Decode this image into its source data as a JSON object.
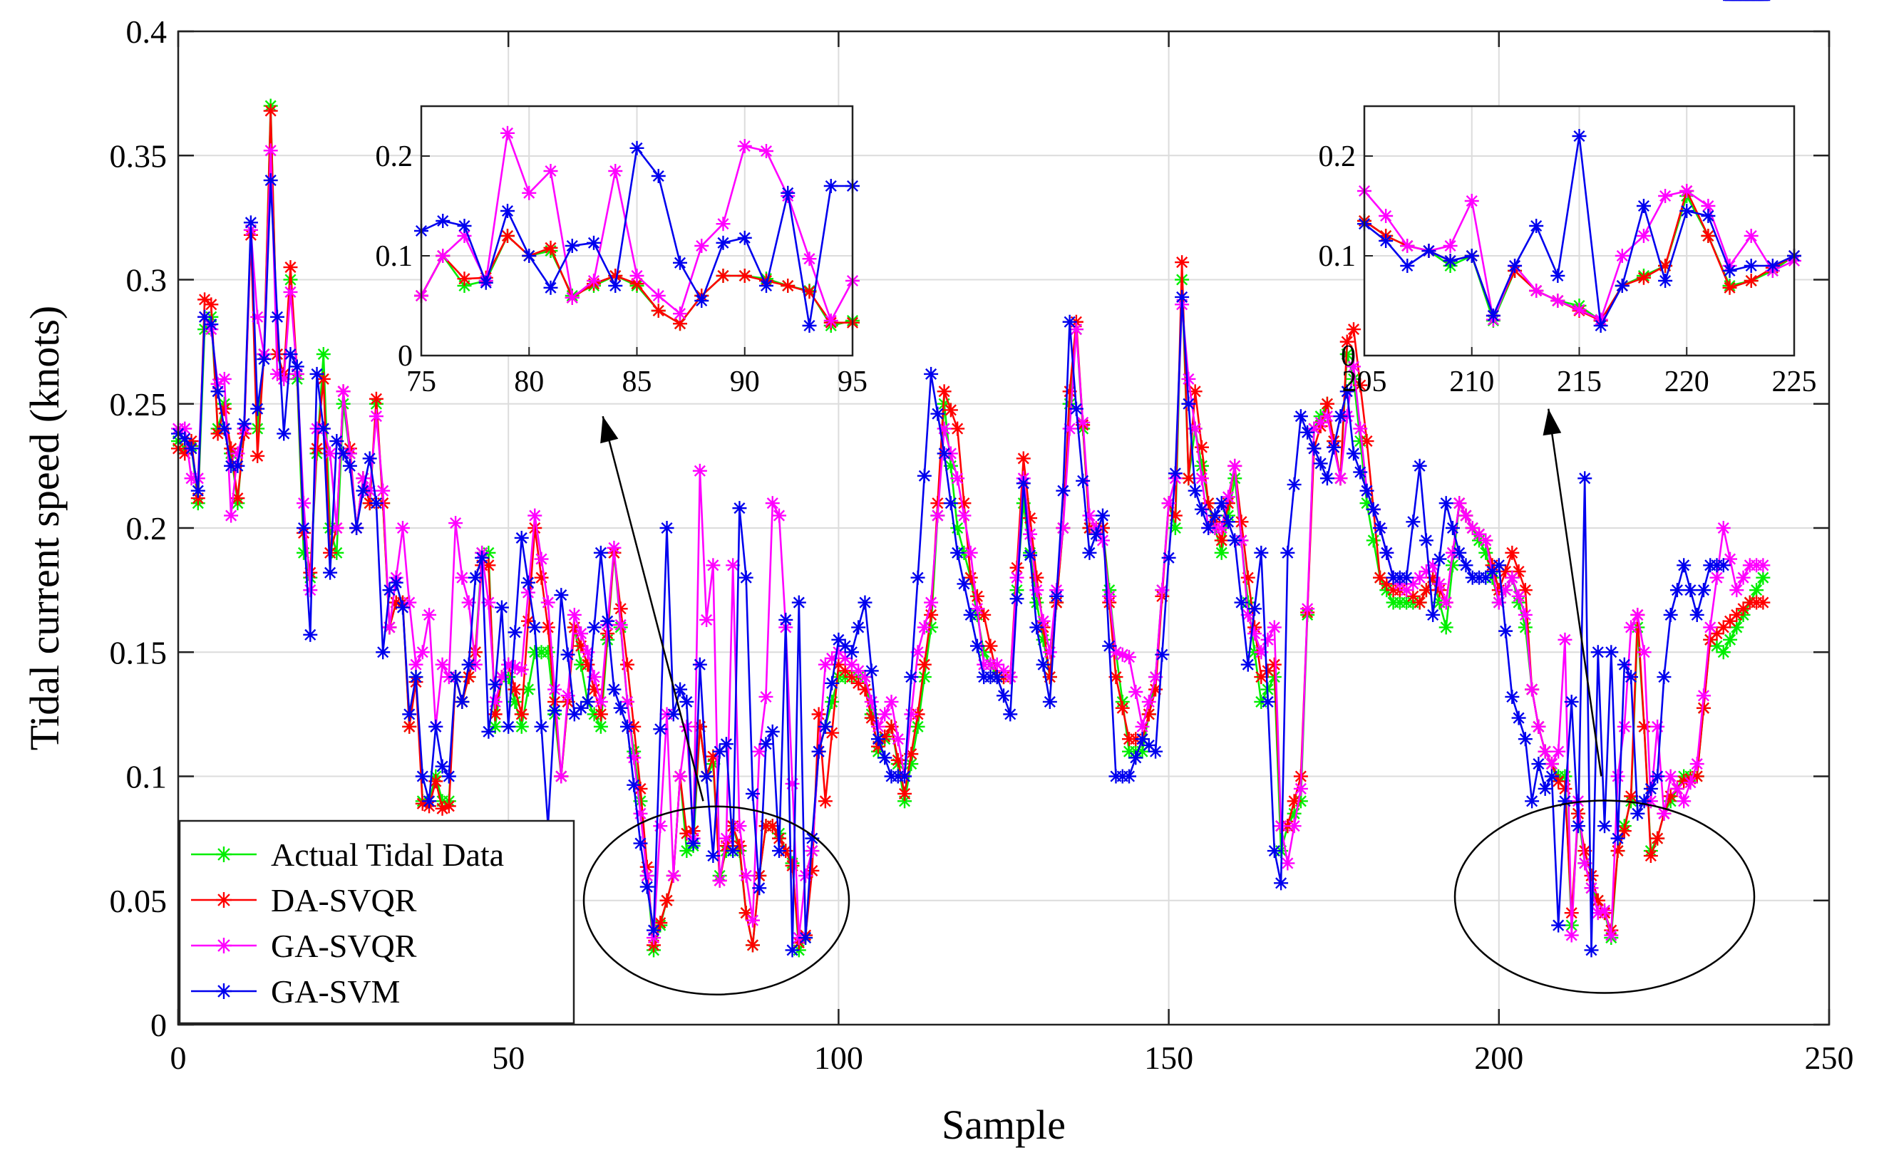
{
  "chart_data": {
    "type": "line",
    "xlabel": "Sample",
    "ylabel": "Tidal current speed (knots)",
    "xlim": [
      0,
      250
    ],
    "ylim": [
      0,
      0.4
    ],
    "xticks": [
      0,
      50,
      100,
      150,
      200,
      250
    ],
    "yticks": [
      0,
      0.05,
      0.1,
      0.15,
      0.2,
      0.25,
      0.3,
      0.35,
      0.4
    ],
    "grid": true,
    "legend_position": "bottom-left",
    "legend": [
      "Actual Tidal Data",
      "DA-SVQR",
      "GA-SVQR",
      "GA-SVM"
    ],
    "anchors": {
      "x": [
        0,
        1,
        2,
        3,
        4,
        5,
        6,
        7,
        8,
        9,
        10,
        11,
        12,
        13,
        14,
        15,
        16,
        17,
        18,
        19,
        20,
        21,
        22,
        23,
        24,
        25,
        26,
        27,
        28,
        29,
        30,
        31,
        32,
        33,
        34,
        35,
        36,
        37,
        38,
        39,
        40,
        41,
        42,
        43,
        44,
        45,
        46,
        47,
        48,
        49,
        50,
        52,
        54,
        56,
        58,
        60,
        62,
        64,
        66,
        68,
        70,
        72,
        74,
        75,
        76,
        77,
        78,
        79,
        80,
        81,
        82,
        83,
        84,
        85,
        86,
        87,
        88,
        89,
        90,
        91,
        92,
        93,
        94,
        95,
        96,
        97,
        98,
        100,
        102,
        104,
        106,
        108,
        110,
        112,
        114,
        116,
        118,
        120,
        122,
        124,
        126,
        128,
        130,
        132,
        134,
        135,
        136,
        138,
        140,
        142,
        144,
        146,
        148,
        150,
        151,
        152,
        153,
        154,
        156,
        158,
        160,
        162,
        164,
        166,
        167,
        168,
        170,
        172,
        174,
        176,
        177,
        178,
        180,
        182,
        184,
        186,
        188,
        190,
        192,
        194,
        196,
        198,
        200,
        202,
        204,
        205,
        206,
        207,
        208,
        209,
        210,
        211,
        212,
        213,
        214,
        215,
        216,
        217,
        218,
        219,
        220,
        221,
        222,
        223,
        224,
        225,
        226,
        228,
        230,
        232,
        234,
        236,
        238,
        240
      ],
      "actual": [
        0.235,
        0.232,
        0.233,
        0.21,
        0.28,
        0.285,
        0.24,
        0.25,
        0.23,
        0.21,
        0.24,
        0.32,
        0.24,
        0.27,
        0.37,
        0.27,
        0.26,
        0.3,
        0.26,
        0.19,
        0.18,
        0.23,
        0.27,
        0.2,
        0.19,
        0.25,
        0.23,
        0.2,
        0.22,
        0.21,
        0.25,
        0.21,
        0.16,
        0.17,
        0.17,
        0.12,
        0.14,
        0.09,
        0.09,
        0.1,
        0.09,
        0.09,
        0.14,
        0.13,
        0.14,
        0.15,
        0.19,
        0.19,
        0.12,
        0.14,
        0.14,
        0.12,
        0.15,
        0.15,
        0.1,
        0.16,
        0.13,
        0.12,
        0.19,
        0.13,
        0.09,
        0.03,
        0.05,
        0.06,
        0.1,
        0.07,
        0.072,
        0.12,
        0.1,
        0.105,
        0.06,
        0.07,
        0.08,
        0.07,
        0.045,
        0.032,
        0.06,
        0.08,
        0.08,
        0.077,
        0.07,
        0.065,
        0.03,
        0.035,
        0.07,
        0.11,
        0.12,
        0.14,
        0.14,
        0.14,
        0.11,
        0.12,
        0.09,
        0.12,
        0.16,
        0.25,
        0.2,
        0.18,
        0.15,
        0.14,
        0.14,
        0.21,
        0.17,
        0.14,
        0.2,
        0.25,
        0.28,
        0.2,
        0.2,
        0.15,
        0.11,
        0.11,
        0.14,
        0.21,
        0.2,
        0.3,
        0.22,
        0.24,
        0.21,
        0.19,
        0.22,
        0.17,
        0.13,
        0.14,
        0.07,
        0.08,
        0.09,
        0.24,
        0.25,
        0.22,
        0.27,
        0.26,
        0.21,
        0.18,
        0.17,
        0.17,
        0.17,
        0.18,
        0.16,
        0.21,
        0.2,
        0.19,
        0.17,
        0.18,
        0.16,
        0.135,
        0.12,
        0.11,
        0.105,
        0.1,
        0.1,
        0.04,
        0.085,
        0.065,
        0.055,
        0.05,
        0.045,
        0.035,
        0.07,
        0.08,
        0.09,
        0.16,
        0.12,
        0.07,
        0.075,
        0.085,
        0.09,
        0.1,
        0.1,
        0.155,
        0.15,
        0.16,
        0.17,
        0.18
      ],
      "da_svqr": [
        0.232,
        0.23,
        0.235,
        0.212,
        0.292,
        0.29,
        0.238,
        0.248,
        0.232,
        0.212,
        0.238,
        0.318,
        0.229,
        0.27,
        0.368,
        0.27,
        0.262,
        0.305,
        0.262,
        0.198,
        0.182,
        0.232,
        0.26,
        0.19,
        0.2,
        0.255,
        0.232,
        0.2,
        0.22,
        0.21,
        0.252,
        0.21,
        0.16,
        0.17,
        0.17,
        0.12,
        0.138,
        0.089,
        0.088,
        0.098,
        0.087,
        0.088,
        0.14,
        0.13,
        0.14,
        0.15,
        0.185,
        0.185,
        0.125,
        0.14,
        0.145,
        0.125,
        0.2,
        0.16,
        0.1,
        0.16,
        0.145,
        0.125,
        0.19,
        0.145,
        0.095,
        0.032,
        0.05,
        0.06,
        0.1,
        0.077,
        0.078,
        0.12,
        0.1,
        0.108,
        0.058,
        0.072,
        0.08,
        0.072,
        0.045,
        0.032,
        0.06,
        0.08,
        0.08,
        0.075,
        0.07,
        0.064,
        0.033,
        0.036,
        0.062,
        0.125,
        0.09,
        0.145,
        0.14,
        0.135,
        0.112,
        0.12,
        0.093,
        0.125,
        0.165,
        0.255,
        0.24,
        0.18,
        0.165,
        0.14,
        0.14,
        0.228,
        0.18,
        0.14,
        0.2,
        0.255,
        0.283,
        0.2,
        0.2,
        0.14,
        0.115,
        0.115,
        0.135,
        0.21,
        0.205,
        0.307,
        0.22,
        0.255,
        0.21,
        0.195,
        0.225,
        0.18,
        0.14,
        0.145,
        0.08,
        0.08,
        0.1,
        0.232,
        0.25,
        0.22,
        0.275,
        0.28,
        0.235,
        0.18,
        0.175,
        0.175,
        0.17,
        0.18,
        0.17,
        0.21,
        0.2,
        0.195,
        0.175,
        0.19,
        0.175,
        0.135,
        0.12,
        0.11,
        0.105,
        0.098,
        0.095,
        0.045,
        0.085,
        0.07,
        0.06,
        0.05,
        0.045,
        0.038,
        0.07,
        0.078,
        0.092,
        0.165,
        0.12,
        0.068,
        0.075,
        0.085,
        0.092,
        0.098,
        0.1,
        0.155,
        0.16,
        0.165,
        0.17,
        0.17
      ],
      "ga_svqr": [
        0.24,
        0.24,
        0.22,
        0.22,
        0.285,
        0.28,
        0.258,
        0.26,
        0.205,
        0.23,
        0.24,
        0.32,
        0.285,
        0.27,
        0.352,
        0.262,
        0.26,
        0.295,
        0.262,
        0.21,
        0.175,
        0.24,
        0.24,
        0.23,
        0.2,
        0.255,
        0.23,
        0.2,
        0.22,
        0.215,
        0.245,
        0.215,
        0.16,
        0.18,
        0.2,
        0.17,
        0.145,
        0.15,
        0.165,
        0.12,
        0.145,
        0.14,
        0.202,
        0.18,
        0.17,
        0.145,
        0.19,
        0.17,
        0.13,
        0.14,
        0.145,
        0.143,
        0.205,
        0.17,
        0.1,
        0.165,
        0.15,
        0.13,
        0.192,
        0.13,
        0.085,
        0.035,
        0.125,
        0.06,
        0.1,
        0.12,
        0.075,
        0.223,
        0.163,
        0.185,
        0.058,
        0.075,
        0.185,
        0.08,
        0.06,
        0.042,
        0.11,
        0.132,
        0.21,
        0.205,
        0.16,
        0.097,
        0.035,
        0.06,
        0.07,
        0.11,
        0.145,
        0.15,
        0.145,
        0.14,
        0.12,
        0.13,
        0.1,
        0.15,
        0.17,
        0.24,
        0.22,
        0.19,
        0.145,
        0.145,
        0.14,
        0.22,
        0.175,
        0.15,
        0.2,
        0.24,
        0.28,
        0.205,
        0.195,
        0.15,
        0.148,
        0.12,
        0.14,
        0.21,
        0.22,
        0.29,
        0.26,
        0.24,
        0.2,
        0.2,
        0.225,
        0.165,
        0.15,
        0.16,
        0.08,
        0.065,
        0.095,
        0.24,
        0.245,
        0.22,
        0.245,
        0.265,
        0.215,
        0.2,
        0.18,
        0.175,
        0.18,
        0.185,
        0.17,
        0.21,
        0.2,
        0.195,
        0.17,
        0.18,
        0.165,
        0.135,
        0.12,
        0.11,
        0.105,
        0.11,
        0.155,
        0.036,
        0.09,
        0.065,
        0.055,
        0.045,
        0.046,
        0.036,
        0.1,
        0.12,
        0.16,
        0.165,
        0.15,
        0.09,
        0.12,
        0.085,
        0.1,
        0.09,
        0.105,
        0.16,
        0.2,
        0.175,
        0.185,
        0.185
      ],
      "ga_svm": [
        0.238,
        0.236,
        0.232,
        0.215,
        0.285,
        0.282,
        0.255,
        0.24,
        0.225,
        0.225,
        0.242,
        0.323,
        0.248,
        0.268,
        0.34,
        0.285,
        0.238,
        0.27,
        0.265,
        0.2,
        0.157,
        0.262,
        0.24,
        0.182,
        0.235,
        0.23,
        0.225,
        0.2,
        0.215,
        0.228,
        0.21,
        0.15,
        0.175,
        0.178,
        0.168,
        0.125,
        0.14,
        0.1,
        0.09,
        0.12,
        0.104,
        0.1,
        0.14,
        0.13,
        0.145,
        0.18,
        0.188,
        0.118,
        0.137,
        0.168,
        0.12,
        0.196,
        0.16,
        0.08,
        0.173,
        0.125,
        0.13,
        0.19,
        0.135,
        0.12,
        0.073,
        0.038,
        0.2,
        0.125,
        0.135,
        0.13,
        0.073,
        0.145,
        0.1,
        0.068,
        0.11,
        0.113,
        0.07,
        0.208,
        0.18,
        0.093,
        0.055,
        0.113,
        0.118,
        0.07,
        0.163,
        0.03,
        0.17,
        0.035,
        0.075,
        0.11,
        0.12,
        0.155,
        0.15,
        0.17,
        0.115,
        0.1,
        0.1,
        0.18,
        0.262,
        0.23,
        0.19,
        0.165,
        0.14,
        0.14,
        0.125,
        0.218,
        0.16,
        0.13,
        0.215,
        0.283,
        0.248,
        0.19,
        0.205,
        0.1,
        0.1,
        0.115,
        0.11,
        0.188,
        0.222,
        0.293,
        0.25,
        0.215,
        0.2,
        0.21,
        0.195,
        0.145,
        0.19,
        0.07,
        0.057,
        0.19,
        0.245,
        0.232,
        0.22,
        0.245,
        0.255,
        0.23,
        0.215,
        0.2,
        0.18,
        0.18,
        0.225,
        0.165,
        0.21,
        0.19,
        0.18,
        0.18,
        0.185,
        0.132,
        0.115,
        0.09,
        0.105,
        0.095,
        0.1,
        0.04,
        0.09,
        0.13,
        0.08,
        0.22,
        0.03,
        0.15,
        0.08,
        0.15,
        0.075,
        0.145,
        0.14,
        0.085,
        0.09,
        0.095,
        0.1,
        0.14,
        0.165,
        0.185,
        0.165,
        0.185,
        0.185
      ]
    },
    "insets": [
      {
        "xlim": [
          75,
          95
        ],
        "ylim": [
          0,
          0.25
        ],
        "xticks": [
          75,
          80,
          85,
          90,
          95
        ],
        "yticks": [
          0,
          0.1,
          0.2
        ],
        "ytick_labels": [
          "0",
          "0.1",
          "0.2"
        ],
        "source": "85",
        "actual": [
          0.06,
          0.1,
          0.07,
          0.075,
          0.12,
          0.1,
          0.105,
          0.06,
          0.07,
          0.08,
          0.07,
          0.045,
          0.032,
          0.06,
          0.08,
          0.08,
          0.077,
          0.07,
          0.065,
          0.03,
          0.035
        ],
        "da_svqr": [
          0.06,
          0.1,
          0.077,
          0.078,
          0.12,
          0.1,
          0.108,
          0.058,
          0.072,
          0.08,
          0.072,
          0.045,
          0.032,
          0.06,
          0.08,
          0.08,
          0.075,
          0.07,
          0.064,
          0.033,
          0.033
        ],
        "ga_svqr": [
          0.06,
          0.1,
          0.12,
          0.075,
          0.223,
          0.163,
          0.185,
          0.058,
          0.075,
          0.185,
          0.08,
          0.06,
          0.042,
          0.11,
          0.132,
          0.21,
          0.205,
          0.16,
          0.097,
          0.035,
          0.075
        ],
        "ga_svm": [
          0.125,
          0.135,
          0.13,
          0.073,
          0.145,
          0.1,
          0.068,
          0.11,
          0.113,
          0.07,
          0.208,
          0.18,
          0.093,
          0.055,
          0.113,
          0.118,
          0.07,
          0.163,
          0.03,
          0.17,
          0.17
        ]
      },
      {
        "xlim": [
          205,
          225
        ],
        "ylim": [
          0,
          0.25
        ],
        "xticks": [
          205,
          210,
          215,
          220,
          225
        ],
        "yticks": [
          0,
          0.1,
          0.2
        ],
        "ytick_labels": [
          "0",
          "0.1",
          "0.2"
        ],
        "source": "215",
        "actual": [
          0.135,
          0.12,
          0.11,
          0.105,
          0.09,
          0.1,
          0.035,
          0.085,
          0.065,
          0.055,
          0.05,
          0.035,
          0.07,
          0.08,
          0.09,
          0.16,
          0.12,
          0.07,
          0.075,
          0.085,
          0.1
        ],
        "da_svqr": [
          0.135,
          0.12,
          0.11,
          0.105,
          0.095,
          0.1,
          0.04,
          0.085,
          0.065,
          0.055,
          0.045,
          0.035,
          0.07,
          0.078,
          0.09,
          0.165,
          0.12,
          0.068,
          0.075,
          0.088,
          0.1
        ],
        "ga_svqr": [
          0.165,
          0.14,
          0.11,
          0.105,
          0.11,
          0.155,
          0.036,
          0.09,
          0.065,
          0.055,
          0.046,
          0.036,
          0.1,
          0.12,
          0.16,
          0.165,
          0.15,
          0.09,
          0.12,
          0.085,
          0.095
        ],
        "ga_svm": [
          0.132,
          0.115,
          0.09,
          0.105,
          0.095,
          0.1,
          0.04,
          0.09,
          0.13,
          0.08,
          0.22,
          0.03,
          0.07,
          0.15,
          0.075,
          0.145,
          0.14,
          0.085,
          0.09,
          0.09,
          0.1
        ]
      }
    ],
    "series": [
      {
        "name": "Actual Tidal Data",
        "key": "actual",
        "color": "#00ee00"
      },
      {
        "name": "DA-SVQR",
        "key": "da_svqr",
        "color": "#ff0000"
      },
      {
        "name": "GA-SVQR",
        "key": "ga_svqr",
        "color": "#ff00ff"
      },
      {
        "name": "GA-SVM",
        "key": "ga_svm",
        "color": "#0000ee"
      }
    ]
  }
}
